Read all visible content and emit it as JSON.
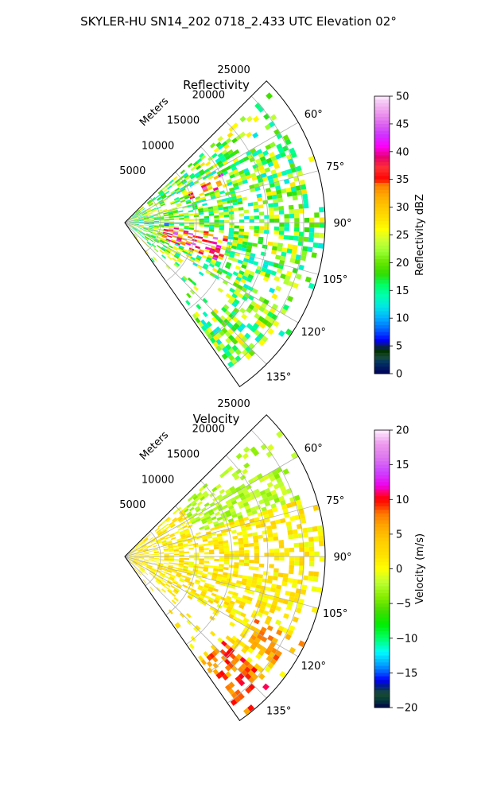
{
  "suptitle": "SKYLER-HU  SN14_202  0718_2.433 UTC Elevation 02°",
  "chart_data": [
    {
      "type": "polar-sector",
      "title": "Reflectivity",
      "radial_axis_label": "Meters",
      "radial_ticks": [
        "5000",
        "10000",
        "15000",
        "20000",
        "25000"
      ],
      "radial_tick_values": [
        5000,
        10000,
        15000,
        20000,
        25000
      ],
      "rlim": [
        0,
        28000
      ],
      "azimuth_ticks": [
        "60°",
        "75°",
        "90°",
        "105°",
        "120°",
        "135°"
      ],
      "azimuth_tick_values": [
        60,
        75,
        90,
        105,
        120,
        135
      ],
      "azimuth_range": [
        45,
        145
      ],
      "grid": true,
      "colorbar": {
        "label": "Reflectivity dBZ",
        "range": [
          0,
          50
        ],
        "ticks": [
          "0",
          "5",
          "10",
          "15",
          "20",
          "25",
          "30",
          "35",
          "40",
          "45",
          "50"
        ],
        "tick_values": [
          0,
          5,
          10,
          15,
          20,
          25,
          30,
          35,
          40,
          45,
          50
        ],
        "colormap": "NWSRef"
      }
    },
    {
      "type": "polar-sector",
      "title": "Velocity",
      "radial_axis_label": "Meters",
      "radial_ticks": [
        "5000",
        "10000",
        "15000",
        "20000",
        "25000"
      ],
      "radial_tick_values": [
        5000,
        10000,
        15000,
        20000,
        25000
      ],
      "rlim": [
        0,
        28000
      ],
      "azimuth_ticks": [
        "60°",
        "75°",
        "90°",
        "105°",
        "120°",
        "135°"
      ],
      "azimuth_tick_values": [
        60,
        75,
        90,
        105,
        120,
        135
      ],
      "azimuth_range": [
        45,
        145
      ],
      "grid": true,
      "colorbar": {
        "label": "Velocity (m/s)",
        "range": [
          -20,
          20
        ],
        "ticks": [
          "−20",
          "−15",
          "−10",
          "−5",
          "0",
          "5",
          "10",
          "15",
          "20"
        ],
        "tick_values": [
          -20,
          -15,
          -10,
          -5,
          0,
          5,
          10,
          15,
          20
        ],
        "colormap": "NWSVel"
      }
    }
  ],
  "colors": {
    "grid": "#b0b0b0",
    "axis": "#000000"
  }
}
